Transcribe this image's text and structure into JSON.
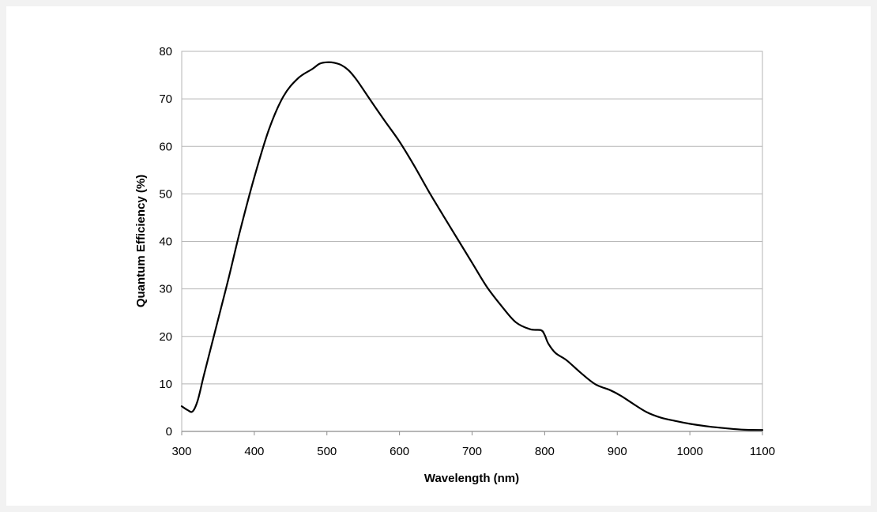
{
  "chart_data": {
    "type": "line",
    "title": "",
    "xlabel": "Wavelength (nm)",
    "ylabel": "Quantum Efficiency (%)",
    "xlim": [
      300,
      1100
    ],
    "ylim": [
      0,
      80
    ],
    "xticks": [
      300,
      400,
      500,
      600,
      700,
      800,
      900,
      1000,
      1100
    ],
    "yticks": [
      0,
      10,
      20,
      30,
      40,
      50,
      60,
      70,
      80
    ],
    "grid": "horizontal",
    "legend": "none",
    "colors": {
      "line": "#000000",
      "grid": "#b5b5b5",
      "axis": "#8c8c8c"
    },
    "series": [
      {
        "x": [
          300,
          308,
          315,
          322,
          330,
          340,
          350,
          365,
          380,
          400,
          420,
          440,
          460,
          480,
          490,
          500,
          510,
          520,
          530,
          540,
          550,
          565,
          580,
          600,
          620,
          640,
          660,
          680,
          700,
          720,
          740,
          760,
          780,
          795,
          800,
          805,
          815,
          830,
          850,
          870,
          890,
          905,
          920,
          940,
          960,
          980,
          1000,
          1025,
          1050,
          1075,
          1100
        ],
        "y": [
          5.3,
          4.5,
          4.2,
          6.5,
          11.5,
          17.5,
          23.5,
          32.5,
          42,
          53.5,
          63.5,
          70.5,
          74.3,
          76.3,
          77.4,
          77.7,
          77.6,
          77.1,
          76,
          74.2,
          72,
          68.6,
          65.3,
          61,
          56,
          50.6,
          45.5,
          40.5,
          35.5,
          30.5,
          26.5,
          23,
          21.5,
          21.3,
          20.3,
          18.5,
          16.5,
          15,
          12.3,
          9.9,
          8.7,
          7.5,
          6,
          4.1,
          2.9,
          2.2,
          1.6,
          1.05,
          0.65,
          0.35,
          0.3
        ]
      }
    ]
  }
}
